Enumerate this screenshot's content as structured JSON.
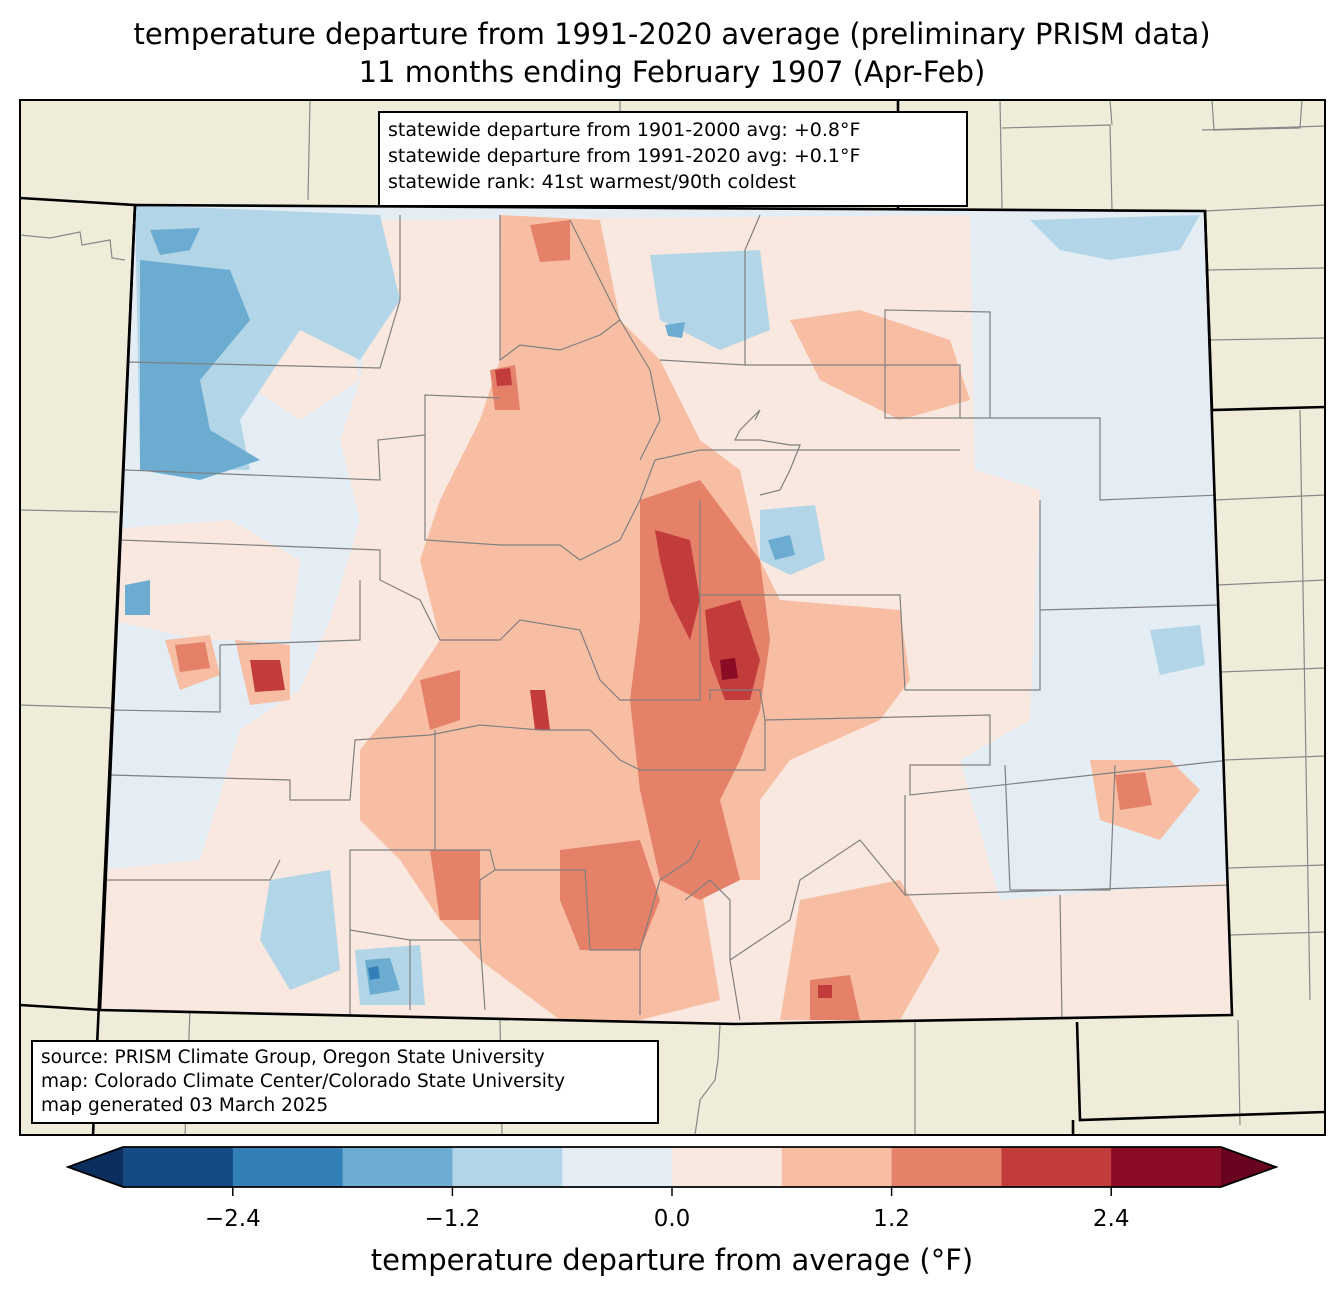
{
  "title": {
    "line1": "temperature departure from 1991-2020 average (preliminary PRISM data)",
    "line2": "11 months ending February 1907 (Apr-Feb)"
  },
  "stats": {
    "line1": "statewide departure from 1901-2000 avg: +0.8°F",
    "line2": "statewide departure from 1991-2020 avg: +0.1°F",
    "line3": "statewide rank: 41st warmest/90th coldest"
  },
  "credits": {
    "line1": "source: PRISM Climate Group, Oregon State University",
    "line2": "map: Colorado Climate Center/Colorado State University",
    "line3": "map generated 03 March 2025"
  },
  "colorbar": {
    "label": "temperature departure from average (°F)",
    "ticks": [
      "−2.4",
      "−1.2",
      "0.0",
      "1.2",
      "2.4"
    ],
    "tick_values": [
      -2.4,
      -1.2,
      0.0,
      1.2,
      2.4
    ],
    "levels": [
      -3.0,
      -2.4,
      -1.8,
      -1.2,
      -0.6,
      0.0,
      0.6,
      1.2,
      1.8,
      2.4,
      3.0
    ],
    "colors": [
      "#154a85",
      "#337fb8",
      "#6bacd0",
      "#b2d5e7",
      "#e4ecf4",
      "#f9e8df",
      "#f8bea3",
      "#e48168",
      "#c33c3c",
      "#8a0b24"
    ],
    "under_color": "#0a2e5e",
    "over_color": "#680420"
  },
  "map_colors": {
    "land_background": "#efedda",
    "state_border": "#000000",
    "county_border": "#808080"
  }
}
